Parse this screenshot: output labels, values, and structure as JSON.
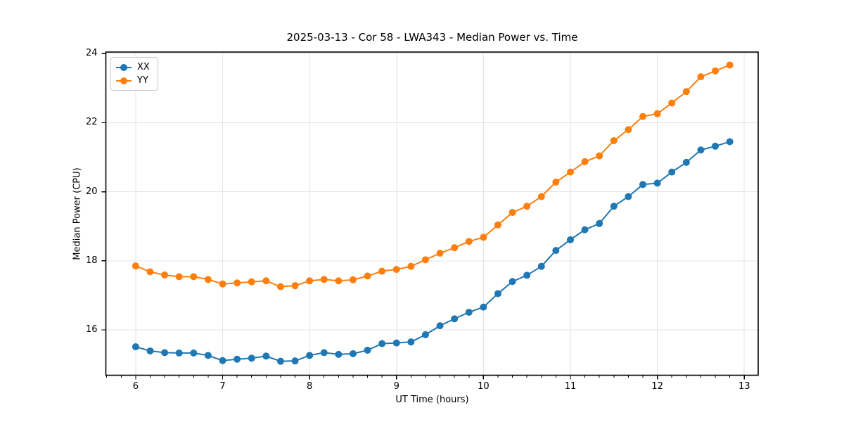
{
  "chart_data": {
    "type": "line",
    "title": "2025-03-13 - Cor 58 - LWA343 - Median Power vs. Time",
    "xlabel": "UT Time (hours)",
    "ylabel": "Median Power (CPU)",
    "xlim": [
      5.657,
      13.16
    ],
    "ylim": [
      14.686,
      24.046
    ],
    "x_ticks": [
      6,
      7,
      8,
      9,
      10,
      11,
      12,
      13
    ],
    "y_ticks": [
      16,
      18,
      20,
      22,
      24
    ],
    "x_minor_tick_step": 0.166667,
    "grid": true,
    "legend_position": "upper left",
    "marker": "o",
    "linestyle": "-",
    "x": [
      6.0,
      6.1667,
      6.3333,
      6.5,
      6.6667,
      6.8333,
      7.0,
      7.1667,
      7.3333,
      7.5,
      7.6667,
      7.8333,
      8.0,
      8.1667,
      8.3333,
      8.5,
      8.6667,
      8.8333,
      9.0,
      9.1667,
      9.3333,
      9.5,
      9.6667,
      9.8333,
      10.0,
      10.1667,
      10.3333,
      10.5,
      10.6667,
      10.8333,
      11.0,
      11.1667,
      11.3333,
      11.5,
      11.6667,
      11.8333,
      12.0,
      12.1667,
      12.3333,
      12.5,
      12.6667,
      12.8333
    ],
    "series": [
      {
        "name": "XX",
        "color": "#1f77b4",
        "values": [
          15.51,
          15.39,
          15.34,
          15.33,
          15.33,
          15.26,
          15.11,
          15.15,
          15.18,
          15.24,
          15.09,
          15.1,
          15.26,
          15.34,
          15.29,
          15.31,
          15.41,
          15.6,
          15.62,
          15.65,
          15.86,
          16.12,
          16.32,
          16.51,
          16.66,
          17.05,
          17.4,
          17.58,
          17.84,
          18.3,
          18.61,
          18.9,
          19.08,
          19.58,
          19.86,
          20.21,
          20.25,
          20.57,
          20.85,
          21.21,
          21.32,
          21.45
        ]
      },
      {
        "name": "YY",
        "color": "#ff7f0e",
        "values": [
          17.85,
          17.68,
          17.59,
          17.54,
          17.54,
          17.46,
          17.33,
          17.36,
          17.39,
          17.42,
          17.25,
          17.28,
          17.42,
          17.46,
          17.42,
          17.45,
          17.56,
          17.7,
          17.75,
          17.84,
          18.03,
          18.22,
          18.38,
          18.56,
          18.68,
          19.04,
          19.4,
          19.58,
          19.86,
          20.28,
          20.57,
          20.87,
          21.04,
          21.48,
          21.8,
          22.18,
          22.26,
          22.57,
          22.9,
          23.33,
          23.5,
          23.67
        ]
      }
    ]
  },
  "style": {
    "grid_color": "#e3e3e3",
    "spine_color": "#000000",
    "tick_color": "#000000",
    "text_color": "#000000",
    "background": "#ffffff"
  }
}
